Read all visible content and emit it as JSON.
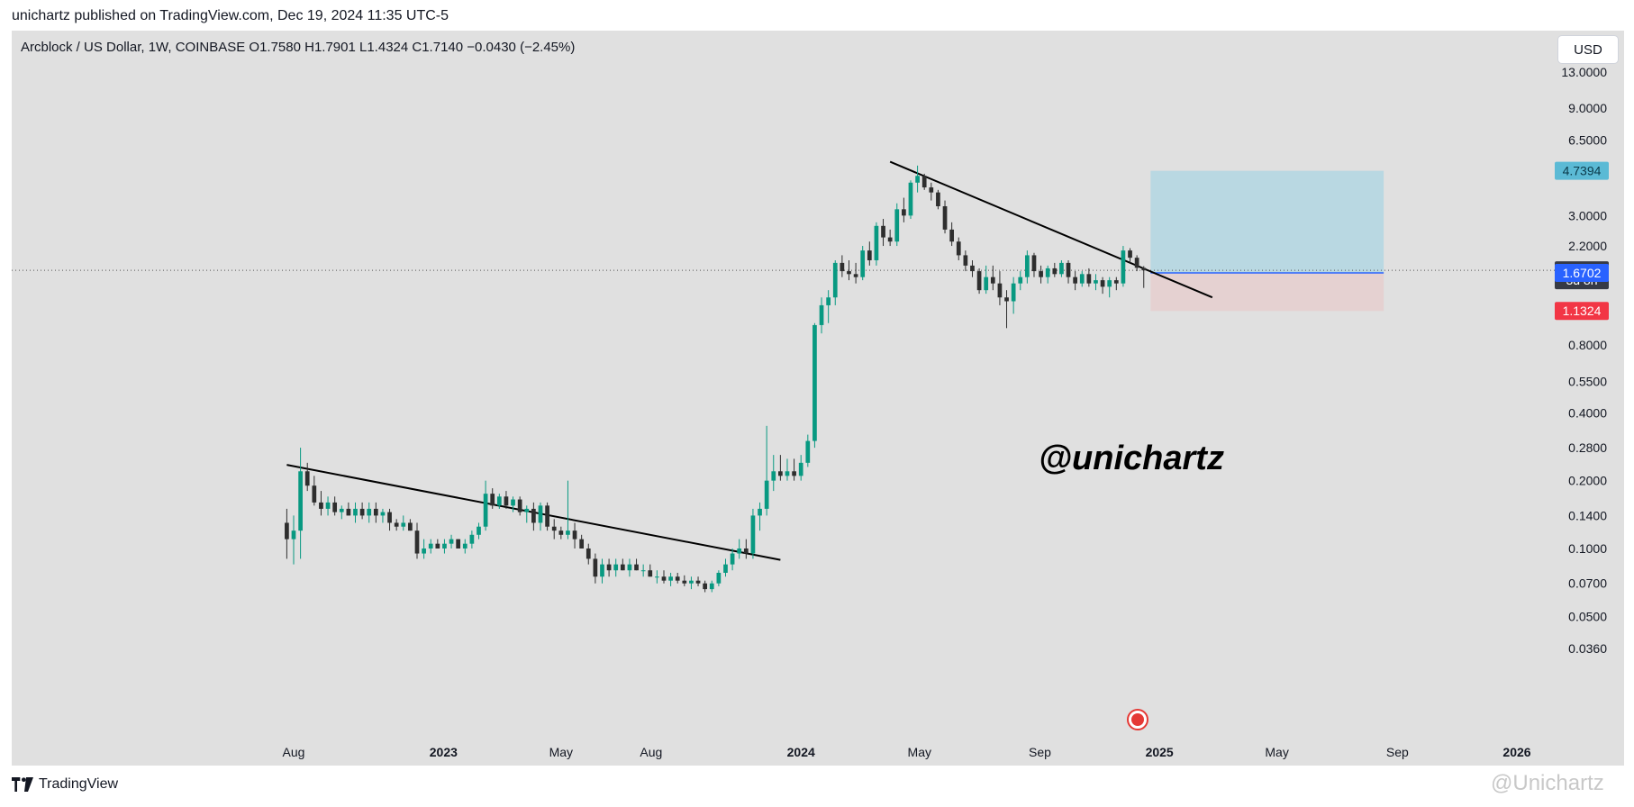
{
  "header": {
    "published": "unichartz published on TradingView.com, Dec 19, 2024 11:35 UTC-5"
  },
  "legend": "Arcblock / US Dollar, 1W, COINBASE  O1.7580  H1.7901  L1.4324  C1.7140  −0.0430 (−2.45%)",
  "currency_button": "USD",
  "footer": {
    "brand": "TradingView",
    "watermark": "@Unichartz"
  },
  "colors": {
    "up": "#089981",
    "down": "#2e2e2e",
    "profit_zone": "#b2d6e2",
    "loss_zone": "#e6cfcf",
    "blue_tag": "#2962ff",
    "red_tag": "#f23645",
    "light_blue_tag": "#5bbad5"
  },
  "chart_data": {
    "type": "candlestick",
    "scale": "log",
    "symbol": "Arcblock / US Dollar",
    "interval": "1W",
    "exchange": "COINBASE",
    "ohlc": {
      "open": 1.758,
      "high": 1.7901,
      "low": 1.4324,
      "close": 1.714,
      "change": -0.043,
      "change_pct": -2.45
    },
    "y_ticks": [
      "13.0000",
      "9.0000",
      "6.5000",
      "3.0000",
      "2.2000",
      "0.8000",
      "0.5500",
      "0.4000",
      "0.2800",
      "0.2000",
      "0.1400",
      "0.1000",
      "0.0700",
      "0.0500",
      "0.0360"
    ],
    "x_ticks": [
      {
        "date": "2022-08-01",
        "label": "Aug"
      },
      {
        "date": "2023-01-01",
        "label": "2023"
      },
      {
        "date": "2023-05-01",
        "label": "May"
      },
      {
        "date": "2023-08-01",
        "label": "Aug"
      },
      {
        "date": "2024-01-01",
        "label": "2024"
      },
      {
        "date": "2024-05-01",
        "label": "May"
      },
      {
        "date": "2024-09-01",
        "label": "Sep"
      },
      {
        "date": "2025-01-01",
        "label": "2025"
      },
      {
        "date": "2025-05-01",
        "label": "May"
      },
      {
        "date": "2025-09-01",
        "label": "Sep"
      },
      {
        "date": "2026-01-01",
        "label": "2026"
      }
    ],
    "price_tags": [
      {
        "label": "4.7394",
        "price": 4.7394,
        "color": "light_blue_tag"
      },
      {
        "label": "1.7140",
        "price": 1.714,
        "color": "dark"
      },
      {
        "label": "3d 8h",
        "price": 1.55,
        "color": "dark"
      },
      {
        "label": "1.6702",
        "price": 1.6702,
        "color": "blue_tag"
      },
      {
        "label": "1.1324",
        "price": 1.1324,
        "color": "red_tag"
      }
    ],
    "trendlines": [
      {
        "from": {
          "date": "2022-07-25",
          "price": 0.235
        },
        "to": {
          "date": "2023-12-11",
          "price": 0.089
        }
      },
      {
        "from": {
          "date": "2024-04-01",
          "price": 5.2
        },
        "to": {
          "date": "2025-02-24",
          "price": 1.3
        }
      }
    ],
    "position": {
      "entry": 1.6702,
      "target": 4.7394,
      "stop": 1.1324,
      "start": "2024-12-23",
      "end": "2025-08-18"
    },
    "annotation": "@unichartz",
    "candles": [
      [
        "2022-07-25",
        0.13,
        0.15,
        0.09,
        0.11
      ],
      [
        "2022-08-01",
        0.11,
        0.14,
        0.085,
        0.12
      ],
      [
        "2022-08-08",
        0.12,
        0.28,
        0.09,
        0.22
      ],
      [
        "2022-08-15",
        0.22,
        0.24,
        0.18,
        0.19
      ],
      [
        "2022-08-22",
        0.19,
        0.21,
        0.155,
        0.16
      ],
      [
        "2022-08-29",
        0.16,
        0.18,
        0.14,
        0.15
      ],
      [
        "2022-09-05",
        0.15,
        0.17,
        0.14,
        0.16
      ],
      [
        "2022-09-12",
        0.16,
        0.17,
        0.14,
        0.145
      ],
      [
        "2022-09-19",
        0.145,
        0.155,
        0.135,
        0.15
      ],
      [
        "2022-09-26",
        0.15,
        0.16,
        0.14,
        0.14
      ],
      [
        "2022-10-03",
        0.14,
        0.16,
        0.13,
        0.15
      ],
      [
        "2022-10-10",
        0.15,
        0.16,
        0.135,
        0.14
      ],
      [
        "2022-10-17",
        0.14,
        0.16,
        0.13,
        0.15
      ],
      [
        "2022-10-24",
        0.15,
        0.16,
        0.13,
        0.14
      ],
      [
        "2022-10-31",
        0.14,
        0.15,
        0.13,
        0.145
      ],
      [
        "2022-11-07",
        0.145,
        0.15,
        0.12,
        0.13
      ],
      [
        "2022-11-14",
        0.13,
        0.135,
        0.12,
        0.125
      ],
      [
        "2022-11-21",
        0.125,
        0.14,
        0.12,
        0.13
      ],
      [
        "2022-11-28",
        0.13,
        0.135,
        0.12,
        0.12
      ],
      [
        "2022-12-05",
        0.12,
        0.13,
        0.09,
        0.095
      ],
      [
        "2022-12-12",
        0.095,
        0.11,
        0.09,
        0.1
      ],
      [
        "2022-12-19",
        0.1,
        0.11,
        0.095,
        0.105
      ],
      [
        "2022-12-26",
        0.105,
        0.11,
        0.1,
        0.1
      ],
      [
        "2023-01-02",
        0.1,
        0.11,
        0.095,
        0.105
      ],
      [
        "2023-01-09",
        0.105,
        0.115,
        0.1,
        0.11
      ],
      [
        "2023-01-16",
        0.11,
        0.11,
        0.1,
        0.1
      ],
      [
        "2023-01-23",
        0.1,
        0.11,
        0.095,
        0.105
      ],
      [
        "2023-01-30",
        0.105,
        0.12,
        0.1,
        0.115
      ],
      [
        "2023-02-06",
        0.115,
        0.13,
        0.11,
        0.125
      ],
      [
        "2023-02-13",
        0.125,
        0.2,
        0.12,
        0.175
      ],
      [
        "2023-02-20",
        0.175,
        0.185,
        0.15,
        0.155
      ],
      [
        "2023-02-27",
        0.155,
        0.175,
        0.15,
        0.17
      ],
      [
        "2023-03-06",
        0.17,
        0.18,
        0.15,
        0.155
      ],
      [
        "2023-03-13",
        0.155,
        0.17,
        0.145,
        0.165
      ],
      [
        "2023-03-20",
        0.165,
        0.17,
        0.14,
        0.145
      ],
      [
        "2023-03-27",
        0.145,
        0.155,
        0.13,
        0.15
      ],
      [
        "2023-04-03",
        0.15,
        0.16,
        0.12,
        0.13
      ],
      [
        "2023-04-10",
        0.13,
        0.16,
        0.12,
        0.155
      ],
      [
        "2023-04-17",
        0.155,
        0.16,
        0.12,
        0.125
      ],
      [
        "2023-04-24",
        0.125,
        0.135,
        0.11,
        0.12
      ],
      [
        "2023-05-01",
        0.12,
        0.125,
        0.11,
        0.115
      ],
      [
        "2023-05-08",
        0.115,
        0.2,
        0.11,
        0.12
      ],
      [
        "2023-05-15",
        0.12,
        0.13,
        0.1,
        0.11
      ],
      [
        "2023-05-22",
        0.11,
        0.115,
        0.1,
        0.1
      ],
      [
        "2023-05-29",
        0.1,
        0.105,
        0.085,
        0.09
      ],
      [
        "2023-06-05",
        0.09,
        0.095,
        0.07,
        0.075
      ],
      [
        "2023-06-12",
        0.075,
        0.09,
        0.07,
        0.085
      ],
      [
        "2023-06-19",
        0.085,
        0.09,
        0.075,
        0.08
      ],
      [
        "2023-06-26",
        0.08,
        0.09,
        0.075,
        0.085
      ],
      [
        "2023-07-03",
        0.085,
        0.09,
        0.08,
        0.08
      ],
      [
        "2023-07-10",
        0.08,
        0.09,
        0.075,
        0.085
      ],
      [
        "2023-07-17",
        0.085,
        0.09,
        0.08,
        0.08
      ],
      [
        "2023-07-24",
        0.08,
        0.085,
        0.075,
        0.08
      ],
      [
        "2023-07-31",
        0.08,
        0.085,
        0.075,
        0.075
      ],
      [
        "2023-08-07",
        0.075,
        0.08,
        0.07,
        0.075
      ],
      [
        "2023-08-14",
        0.075,
        0.08,
        0.07,
        0.072
      ],
      [
        "2023-08-21",
        0.072,
        0.078,
        0.068,
        0.075
      ],
      [
        "2023-08-28",
        0.075,
        0.078,
        0.07,
        0.072
      ],
      [
        "2023-09-04",
        0.072,
        0.076,
        0.068,
        0.07
      ],
      [
        "2023-09-11",
        0.07,
        0.075,
        0.066,
        0.072
      ],
      [
        "2023-09-18",
        0.072,
        0.075,
        0.068,
        0.07
      ],
      [
        "2023-09-25",
        0.07,
        0.072,
        0.064,
        0.066
      ],
      [
        "2023-10-02",
        0.066,
        0.072,
        0.064,
        0.07
      ],
      [
        "2023-10-09",
        0.07,
        0.08,
        0.068,
        0.078
      ],
      [
        "2023-10-16",
        0.078,
        0.09,
        0.075,
        0.085
      ],
      [
        "2023-10-23",
        0.085,
        0.1,
        0.08,
        0.095
      ],
      [
        "2023-10-30",
        0.095,
        0.11,
        0.09,
        0.1
      ],
      [
        "2023-11-06",
        0.1,
        0.11,
        0.09,
        0.095
      ],
      [
        "2023-11-13",
        0.095,
        0.15,
        0.09,
        0.14
      ],
      [
        "2023-11-20",
        0.14,
        0.16,
        0.12,
        0.15
      ],
      [
        "2023-11-27",
        0.15,
        0.35,
        0.14,
        0.2
      ],
      [
        "2023-12-04",
        0.2,
        0.26,
        0.18,
        0.22
      ],
      [
        "2023-12-11",
        0.22,
        0.26,
        0.2,
        0.21
      ],
      [
        "2023-12-18",
        0.21,
        0.25,
        0.2,
        0.22
      ],
      [
        "2023-12-25",
        0.22,
        0.25,
        0.2,
        0.21
      ],
      [
        "2024-01-01",
        0.21,
        0.26,
        0.2,
        0.24
      ],
      [
        "2024-01-08",
        0.24,
        0.32,
        0.23,
        0.3
      ],
      [
        "2024-01-15",
        0.3,
        1.0,
        0.28,
        0.98
      ],
      [
        "2024-01-22",
        0.98,
        1.3,
        0.9,
        1.2
      ],
      [
        "2024-01-29",
        1.2,
        1.4,
        1.0,
        1.3
      ],
      [
        "2024-02-05",
        1.3,
        1.9,
        1.2,
        1.85
      ],
      [
        "2024-02-12",
        1.85,
        2.0,
        1.6,
        1.7
      ],
      [
        "2024-02-19",
        1.7,
        1.9,
        1.55,
        1.65
      ],
      [
        "2024-02-26",
        1.65,
        1.85,
        1.5,
        1.6
      ],
      [
        "2024-03-04",
        1.6,
        2.2,
        1.55,
        2.1
      ],
      [
        "2024-03-11",
        2.1,
        2.3,
        1.8,
        1.9
      ],
      [
        "2024-03-18",
        1.9,
        2.8,
        1.8,
        2.7
      ],
      [
        "2024-03-25",
        2.7,
        2.9,
        2.2,
        2.4
      ],
      [
        "2024-04-01",
        2.4,
        2.6,
        2.2,
        2.3
      ],
      [
        "2024-04-08",
        2.3,
        3.4,
        2.2,
        3.2
      ],
      [
        "2024-04-15",
        3.2,
        3.6,
        2.8,
        3.0
      ],
      [
        "2024-04-22",
        3.0,
        4.3,
        2.9,
        4.2
      ],
      [
        "2024-04-29",
        4.2,
        5.0,
        3.8,
        4.5
      ],
      [
        "2024-05-06",
        4.5,
        4.6,
        3.9,
        4.0
      ],
      [
        "2024-05-13",
        4.0,
        4.2,
        3.5,
        3.8
      ],
      [
        "2024-05-20",
        3.8,
        3.9,
        3.2,
        3.3
      ],
      [
        "2024-05-27",
        3.3,
        3.5,
        2.5,
        2.6
      ],
      [
        "2024-06-03",
        2.6,
        2.8,
        2.2,
        2.3
      ],
      [
        "2024-06-10",
        2.3,
        2.4,
        1.9,
        2.0
      ],
      [
        "2024-06-17",
        2.0,
        2.1,
        1.7,
        1.8
      ],
      [
        "2024-06-24",
        1.8,
        1.9,
        1.6,
        1.7
      ],
      [
        "2024-07-01",
        1.7,
        1.75,
        1.35,
        1.4
      ],
      [
        "2024-07-08",
        1.4,
        1.8,
        1.35,
        1.6
      ],
      [
        "2024-07-15",
        1.6,
        1.8,
        1.4,
        1.5
      ],
      [
        "2024-07-22",
        1.5,
        1.7,
        1.2,
        1.3
      ],
      [
        "2024-07-29",
        1.3,
        1.4,
        0.95,
        1.25
      ],
      [
        "2024-08-05",
        1.25,
        1.6,
        1.1,
        1.5
      ],
      [
        "2024-08-12",
        1.5,
        1.7,
        1.4,
        1.6
      ],
      [
        "2024-08-19",
        1.6,
        2.1,
        1.5,
        2.0
      ],
      [
        "2024-08-26",
        2.0,
        2.05,
        1.6,
        1.7
      ],
      [
        "2024-09-02",
        1.7,
        1.8,
        1.5,
        1.6
      ],
      [
        "2024-09-09",
        1.6,
        1.8,
        1.5,
        1.75
      ],
      [
        "2024-09-16",
        1.75,
        1.85,
        1.6,
        1.65
      ],
      [
        "2024-09-23",
        1.65,
        1.9,
        1.6,
        1.85
      ],
      [
        "2024-09-30",
        1.85,
        1.9,
        1.5,
        1.6
      ],
      [
        "2024-10-07",
        1.6,
        1.7,
        1.4,
        1.5
      ],
      [
        "2024-10-14",
        1.5,
        1.7,
        1.45,
        1.65
      ],
      [
        "2024-10-21",
        1.65,
        1.75,
        1.45,
        1.5
      ],
      [
        "2024-10-28",
        1.5,
        1.65,
        1.4,
        1.55
      ],
      [
        "2024-11-04",
        1.55,
        1.6,
        1.35,
        1.45
      ],
      [
        "2024-11-11",
        1.45,
        1.6,
        1.3,
        1.55
      ],
      [
        "2024-11-18",
        1.55,
        1.6,
        1.4,
        1.5
      ],
      [
        "2024-11-25",
        1.5,
        2.2,
        1.45,
        2.1
      ],
      [
        "2024-12-02",
        2.1,
        2.15,
        1.85,
        1.95
      ],
      [
        "2024-12-09",
        1.95,
        2.0,
        1.7,
        1.76
      ],
      [
        "2024-12-16",
        1.758,
        1.7901,
        1.4324,
        1.714
      ]
    ]
  }
}
